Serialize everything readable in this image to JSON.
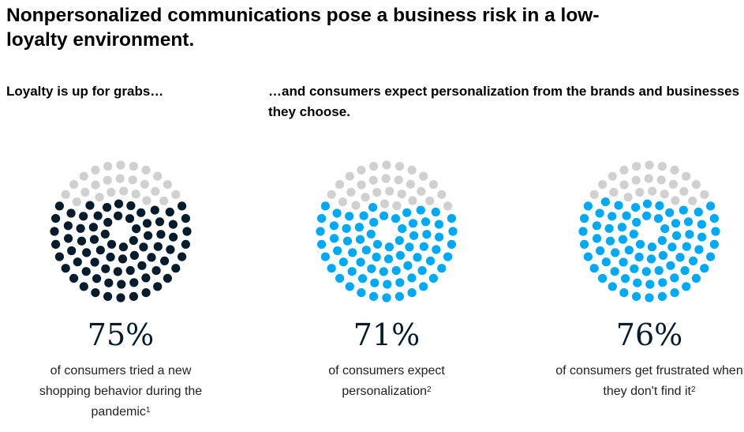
{
  "title": "Nonpersonalized communications pose a business risk in a low-loyalty environment.",
  "subtitle_left": "Loyalty is up for grabs…",
  "subtitle_right": "…and consumers expect personalization from the brands and businesses they choose.",
  "chart_data": {
    "type": "dot-matrix",
    "total_dots": 100,
    "empty_color": "#d0d0d0",
    "charts": [
      {
        "value": 75,
        "label": "75%",
        "description": "of consumers tried a new shopping behavior during the pandemic",
        "footnote": "1",
        "color": "#051c2c"
      },
      {
        "value": 71,
        "label": "71%",
        "description": "of consumers expect personalization",
        "footnote": "2",
        "color": "#00a9f4"
      },
      {
        "value": 76,
        "label": "76%",
        "description": "of consumers get frustrated when they don't find it",
        "footnote": "2",
        "color": "#00a9f4"
      }
    ]
  }
}
